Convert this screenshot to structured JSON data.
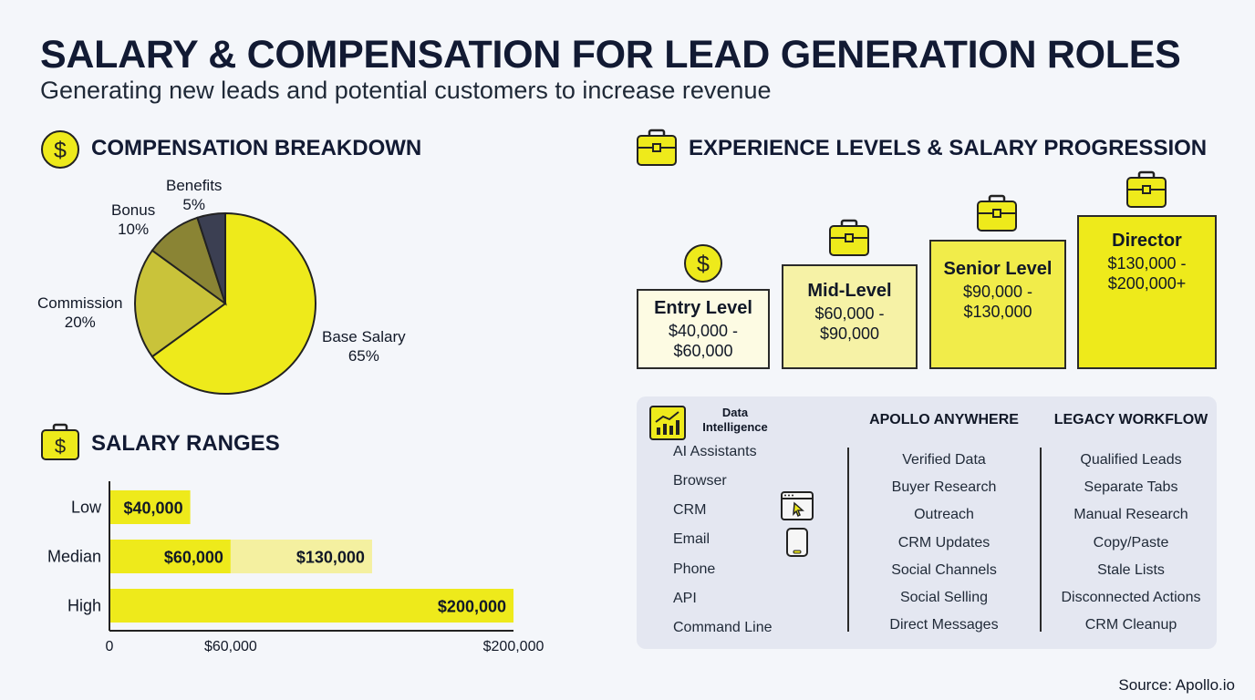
{
  "header": {
    "title": "SALARY & COMPENSATION FOR LEAD GENERATION ROLES",
    "subtitle": "Generating new leads and potential customers to increase revenue"
  },
  "compensation": {
    "section_title": "COMPENSATION BREAKDOWN"
  },
  "salary_ranges": {
    "section_title": "SALARY RANGES"
  },
  "experience": {
    "section_title": "EXPERIENCE LEVELS & SALARY PROGRESSION",
    "levels": [
      {
        "name": "Entry Level",
        "range": "$40,000 -\n$60,000"
      },
      {
        "name": "Mid-Level",
        "range": "$60,000 -\n$90,000"
      },
      {
        "name": "Senior Level",
        "range": "$90,000 -\n$130,000"
      },
      {
        "name": "Director",
        "range": "$130,000 -\n$200,000+"
      }
    ]
  },
  "panel": {
    "heading": "Data\nIntelligence",
    "channels": [
      "AI Assistants",
      "Browser",
      "CRM",
      "Email",
      "Phone",
      "API",
      "Command Line"
    ],
    "apollo_title": "APOLLO ANYWHERE",
    "apollo_items": [
      "Verified Data",
      "Buyer Research",
      "Outreach",
      "CRM Updates",
      "Social Channels",
      "Social Selling",
      "Direct Messages"
    ],
    "legacy_title": "LEGACY WORKFLOW",
    "legacy_items": [
      "Qualified Leads",
      "Separate Tabs",
      "Manual Research",
      "Copy/Paste",
      "Stale Lists",
      "Disconnected Actions",
      "CRM Cleanup"
    ]
  },
  "source": "Source: Apollo.io",
  "colors": {
    "yellow": "#eeea1b",
    "olive": "#c9c33a",
    "dark_olive": "#8a8434",
    "slate": "#3b3f52",
    "pale_yellow": "#f4f0a0"
  },
  "chart_data": [
    {
      "type": "pie",
      "labels": [
        "Base Salary",
        "Commission",
        "Bonus",
        "Benefits"
      ],
      "values": [
        65,
        20,
        10,
        5
      ],
      "value_labels": [
        "65%",
        "20%",
        "10%",
        "5%"
      ],
      "colors": [
        "#eeea1b",
        "#c9c33a",
        "#8a8434",
        "#3b3f52"
      ]
    },
    {
      "type": "bar",
      "orientation": "horizontal",
      "categories": [
        "Low",
        "Median",
        "High"
      ],
      "bars": [
        {
          "category": "Low",
          "start": 0,
          "end": 40000,
          "label": "$40,000",
          "color": "#eeea1b"
        },
        {
          "category": "Median",
          "start": 0,
          "end": 60000,
          "label": "$60,000",
          "color": "#eeea1b"
        },
        {
          "category": "Median",
          "start": 60000,
          "end": 130000,
          "label": "$130,000",
          "color": "#f4f0a0"
        },
        {
          "category": "High",
          "start": 0,
          "end": 200000,
          "label": "$200,000",
          "color": "#eeea1b"
        }
      ],
      "xticks": [
        0,
        60000,
        200000
      ],
      "xtick_labels": [
        "0",
        "$60,000",
        "$200,000"
      ],
      "xlim": [
        0,
        200000
      ]
    }
  ]
}
